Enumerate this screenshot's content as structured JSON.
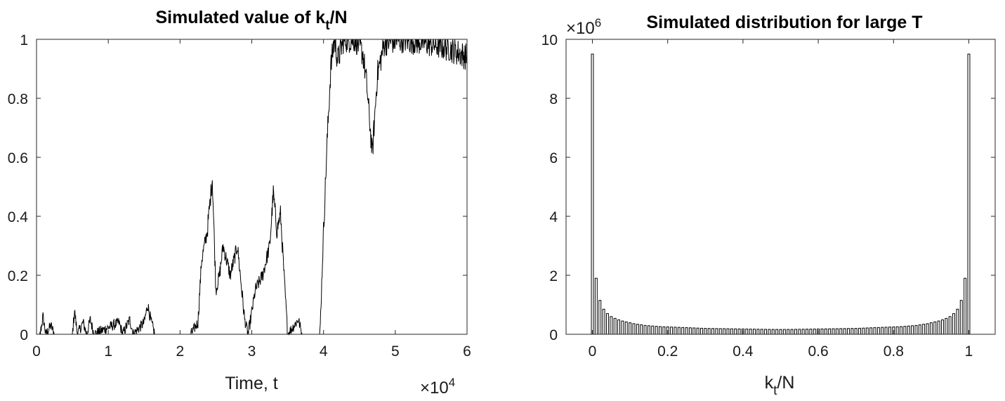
{
  "chart_data": [
    {
      "type": "line",
      "title_parts": {
        "pre": "Simulated value of k",
        "sub": "t",
        "post": "/N"
      },
      "xlabel": "Time, t",
      "ylabel": "",
      "x_exponent": {
        "base": "×10",
        "power": "4"
      },
      "xlim": [
        0,
        60000
      ],
      "ylim": [
        0,
        1
      ],
      "xtick_values": [
        0,
        10000,
        20000,
        30000,
        40000,
        50000,
        60000
      ],
      "xtick_labels": [
        "0",
        "1",
        "2",
        "3",
        "4",
        "5",
        "6"
      ],
      "ytick_values": [
        0,
        0.2,
        0.4,
        0.6,
        0.8,
        1
      ],
      "ytick_labels": [
        "0",
        "0.2",
        "0.4",
        "0.6",
        "0.8",
        "1"
      ],
      "grid": false,
      "color": "#000000",
      "keypoints": [
        [
          0,
          0.0
        ],
        [
          500,
          0.0
        ],
        [
          900,
          0.06
        ],
        [
          1300,
          0.0
        ],
        [
          2000,
          0.03
        ],
        [
          2500,
          0.0
        ],
        [
          5000,
          0.0
        ],
        [
          5300,
          0.08
        ],
        [
          5700,
          0.0
        ],
        [
          6500,
          0.04
        ],
        [
          7000,
          0.0
        ],
        [
          7500,
          0.05
        ],
        [
          8000,
          0.0
        ],
        [
          11500,
          0.04
        ],
        [
          12000,
          0.0
        ],
        [
          13000,
          0.05
        ],
        [
          13500,
          0.0
        ],
        [
          15000,
          0.04
        ],
        [
          15500,
          0.1
        ],
        [
          16000,
          0.04
        ],
        [
          16500,
          0.0
        ],
        [
          21500,
          0.0
        ],
        [
          22500,
          0.04
        ],
        [
          23000,
          0.25
        ],
        [
          23800,
          0.35
        ],
        [
          24500,
          0.53
        ],
        [
          25000,
          0.15
        ],
        [
          25500,
          0.2
        ],
        [
          26000,
          0.3
        ],
        [
          27000,
          0.2
        ],
        [
          28000,
          0.3
        ],
        [
          29000,
          0.05
        ],
        [
          29500,
          0.0
        ],
        [
          30500,
          0.15
        ],
        [
          31500,
          0.2
        ],
        [
          32500,
          0.3
        ],
        [
          33000,
          0.48
        ],
        [
          33500,
          0.35
        ],
        [
          34000,
          0.41
        ],
        [
          34500,
          0.2
        ],
        [
          35000,
          0.0
        ],
        [
          36500,
          0.05
        ],
        [
          37000,
          0.0
        ],
        [
          39500,
          0.0
        ],
        [
          40000,
          0.35
        ],
        [
          40500,
          0.65
        ],
        [
          41000,
          0.9
        ],
        [
          41500,
          1.0
        ],
        [
          42000,
          0.93
        ],
        [
          42800,
          1.0
        ],
        [
          44500,
          1.0
        ],
        [
          45500,
          0.95
        ],
        [
          46000,
          0.85
        ],
        [
          46800,
          0.61
        ],
        [
          47500,
          0.88
        ],
        [
          48500,
          0.99
        ],
        [
          51000,
          1.0
        ],
        [
          54000,
          0.99
        ],
        [
          57500,
          0.97
        ],
        [
          60000,
          0.94
        ]
      ]
    },
    {
      "type": "bar",
      "title": "Simulated distribution for large T",
      "y_exponent": {
        "base": "×10",
        "power": "6"
      },
      "xlabel_parts": {
        "pre": "k",
        "sub": "t",
        "post": "/N"
      },
      "ylabel": "",
      "xlim": [
        -0.07,
        1.07
      ],
      "ylim": [
        0,
        10000000
      ],
      "xtick_values": [
        0,
        0.2,
        0.4,
        0.6,
        0.8,
        1
      ],
      "xtick_labels": [
        "0",
        "0.2",
        "0.4",
        "0.6",
        "0.8",
        "1"
      ],
      "ytick_values": [
        0,
        2000000,
        4000000,
        6000000,
        8000000,
        10000000
      ],
      "ytick_labels": [
        "0",
        "2",
        "4",
        "6",
        "8",
        "10"
      ],
      "grid": false,
      "bar_color": "#ffffff",
      "edge_color": "#000000",
      "x_step": 0.01,
      "values": [
        9500000,
        1900000,
        1150000,
        850000,
        700000,
        600000,
        540000,
        490000,
        450000,
        420000,
        390000,
        360000,
        340000,
        320000,
        300000,
        290000,
        280000,
        270000,
        260000,
        255000,
        250000,
        245000,
        240000,
        235000,
        230000,
        225000,
        220000,
        215000,
        210000,
        205000,
        200000,
        198000,
        196000,
        194000,
        192000,
        190000,
        188000,
        186000,
        184000,
        182000,
        180000,
        178000,
        176000,
        174000,
        172000,
        170000,
        168000,
        166000,
        165000,
        164000,
        163000,
        164000,
        165000,
        166000,
        168000,
        170000,
        172000,
        174000,
        176000,
        178000,
        180000,
        182000,
        184000,
        186000,
        188000,
        190000,
        192000,
        194000,
        196000,
        198000,
        200000,
        205000,
        210000,
        215000,
        220000,
        225000,
        230000,
        235000,
        240000,
        245000,
        250000,
        255000,
        260000,
        270000,
        280000,
        290000,
        300000,
        320000,
        340000,
        360000,
        390000,
        420000,
        450000,
        490000,
        540000,
        600000,
        700000,
        850000,
        1150000,
        1900000,
        9500000
      ]
    }
  ]
}
